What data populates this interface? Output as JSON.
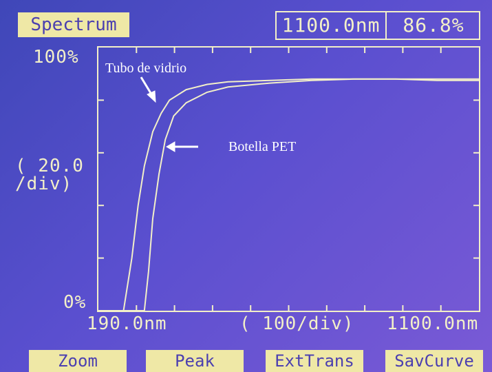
{
  "header": {
    "title": "Spectrum",
    "cursor_wavelength": "1100.0nm",
    "cursor_value": "86.8%"
  },
  "plot": {
    "y_max_label": "100%",
    "y_min_label": "0%",
    "y_scale_label": "( 20.0\n/div)",
    "x_min_label": "190.0nm",
    "x_scale_label": "( 100/div)",
    "x_max_label": "1100.0nm"
  },
  "annotations": {
    "glass_tube": "Tubo de vidrio",
    "pet_bottle": "Botella PET"
  },
  "softkeys": {
    "zoom": "Zoom",
    "peak": "Peak",
    "ext_trans": "ExtTrans",
    "sav_curve": "SavCurve"
  },
  "colors": {
    "lcd_text": "#f3f0c8",
    "key_background": "#efe8a6",
    "annotation": "#ffffff"
  },
  "chart_data": {
    "type": "line",
    "xlim": [
      190,
      1100
    ],
    "ylim": [
      0,
      100
    ],
    "series": [
      {
        "name": "Tubo de vidrio",
        "x": [
          190,
          250,
          270,
          285,
          300,
          320,
          340,
          360,
          400,
          450,
          500,
          600,
          700,
          800,
          900,
          1000,
          1100
        ],
        "y": [
          0,
          0,
          20,
          40,
          55,
          68,
          75,
          80,
          84,
          86,
          87,
          87.5,
          88,
          88,
          88,
          88,
          88
        ]
      },
      {
        "name": "Botella PET",
        "x": [
          190,
          300,
          310,
          320,
          335,
          350,
          370,
          400,
          450,
          500,
          600,
          700,
          800,
          900,
          1000,
          1100
        ],
        "y": [
          0,
          0,
          15,
          35,
          52,
          65,
          74,
          79,
          83,
          85,
          86.5,
          87.5,
          88,
          88,
          87.5,
          87.5
        ]
      }
    ]
  }
}
